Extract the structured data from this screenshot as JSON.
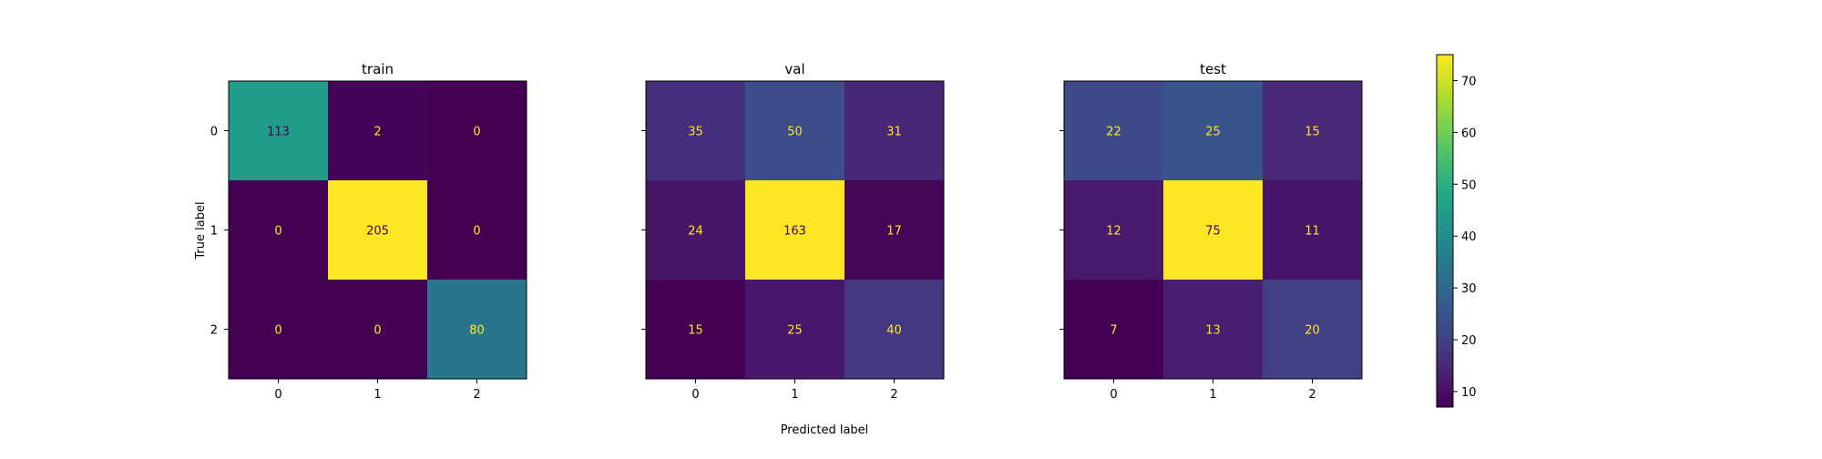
{
  "chart_data": {
    "type": "heatmap",
    "xlabel": "Predicted label",
    "ylabel": "True label",
    "class_labels": [
      "0",
      "1",
      "2"
    ],
    "panels": [
      {
        "title": "train",
        "matrix": [
          [
            113,
            2,
            0
          ],
          [
            0,
            205,
            0
          ],
          [
            0,
            0,
            80
          ]
        ]
      },
      {
        "title": "val",
        "matrix": [
          [
            35,
            50,
            31
          ],
          [
            24,
            163,
            17
          ],
          [
            15,
            25,
            40
          ]
        ]
      },
      {
        "title": "test",
        "matrix": [
          [
            22,
            25,
            15
          ],
          [
            12,
            75,
            11
          ],
          [
            7,
            13,
            20
          ]
        ]
      }
    ],
    "colorbar": {
      "colormap": "viridis",
      "min": 7,
      "max": 75,
      "ticks": [
        10,
        20,
        30,
        40,
        50,
        60,
        70
      ]
    },
    "text_colors": {
      "on_dark": "#fde725",
      "on_light": "#440154"
    }
  }
}
